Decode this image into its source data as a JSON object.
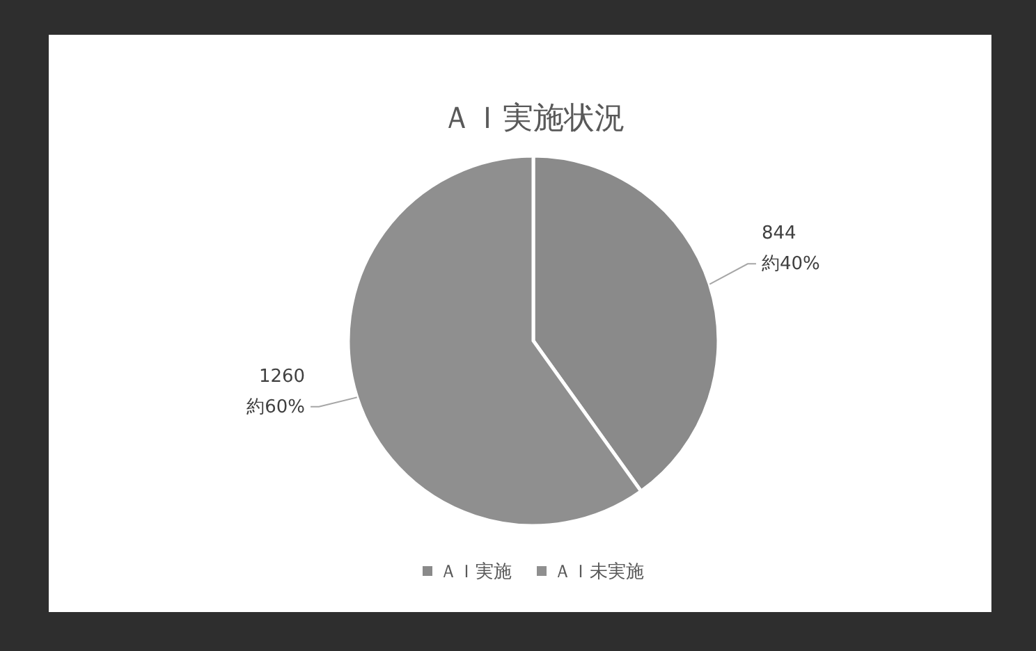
{
  "chart_data": {
    "type": "pie",
    "title": "ＡＩ実施状況",
    "categories": [
      "ＡＩ実施",
      "ＡＩ未実施"
    ],
    "values": [
      844,
      1260
    ],
    "colors": [
      "#8a8a8a",
      "#8f8f8f"
    ],
    "value_labels": [
      "844\n約40%",
      "1260\n約60%"
    ],
    "legend": "bottom"
  }
}
